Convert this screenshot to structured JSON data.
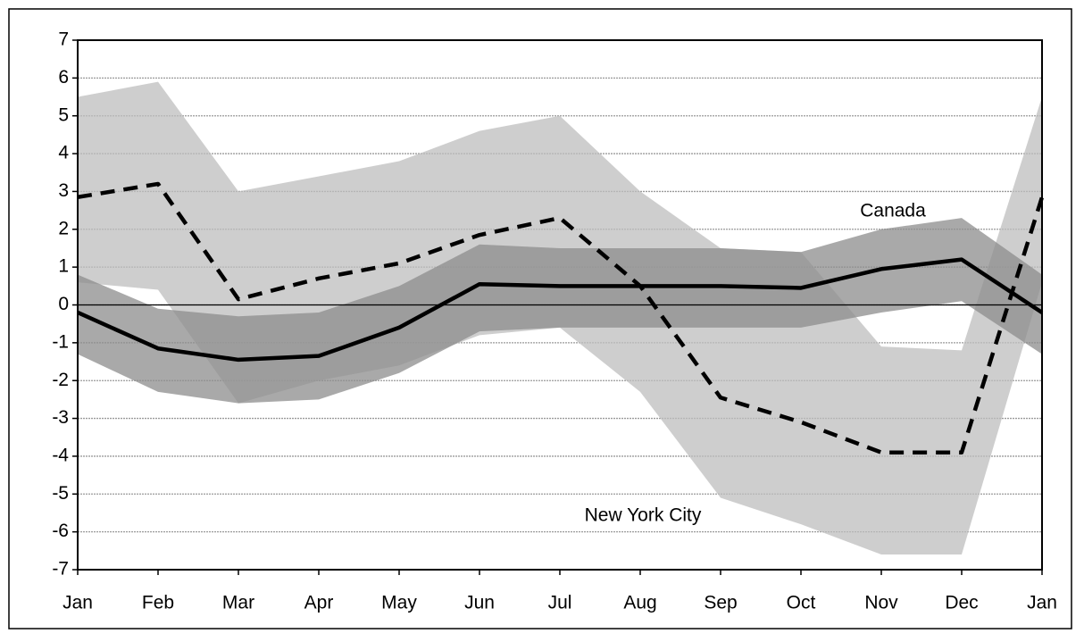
{
  "chart_data": {
    "type": "line",
    "categories": [
      "Jan",
      "Feb",
      "Mar",
      "Apr",
      "May",
      "Jun",
      "Jul",
      "Aug",
      "Sep",
      "Oct",
      "Nov",
      "Dec",
      "Jan"
    ],
    "series": [
      {
        "name": "New York City",
        "color": "#000000",
        "dashed": true,
        "band_color": "#bdbdbd",
        "values": [
          2.85,
          3.2,
          0.15,
          0.7,
          1.1,
          1.85,
          2.3,
          0.5,
          -2.45,
          -3.1,
          -3.9,
          -3.9,
          2.85
        ],
        "upper": [
          5.5,
          5.9,
          3.0,
          3.4,
          3.8,
          4.6,
          5.0,
          3.0,
          1.5,
          1.4,
          -1.1,
          -1.2,
          5.5
        ],
        "lower": [
          0.6,
          0.4,
          -2.6,
          -2.0,
          -1.6,
          -0.8,
          -0.6,
          -2.3,
          -5.1,
          -5.8,
          -6.6,
          -6.6,
          0.6
        ]
      },
      {
        "name": "Canada",
        "color": "#000000",
        "dashed": false,
        "band_color": "#8c8c8c",
        "values": [
          -0.2,
          -1.15,
          -1.45,
          -1.35,
          -0.6,
          0.55,
          0.5,
          0.5,
          0.5,
          0.45,
          0.95,
          1.2,
          -0.2
        ],
        "upper": [
          0.8,
          -0.1,
          -0.3,
          -0.2,
          0.5,
          1.6,
          1.5,
          1.5,
          1.5,
          1.4,
          2.0,
          2.3,
          0.8
        ],
        "lower": [
          -1.3,
          -2.3,
          -2.6,
          -2.5,
          -1.8,
          -0.7,
          -0.6,
          -0.6,
          -0.6,
          -0.6,
          -0.2,
          0.1,
          -1.3
        ]
      }
    ],
    "ylim": [
      -7,
      7
    ],
    "yticks": [
      -7,
      -6,
      -5,
      -4,
      -3,
      -2,
      -1,
      0,
      1,
      2,
      3,
      4,
      5,
      6,
      7
    ],
    "grid": true
  }
}
